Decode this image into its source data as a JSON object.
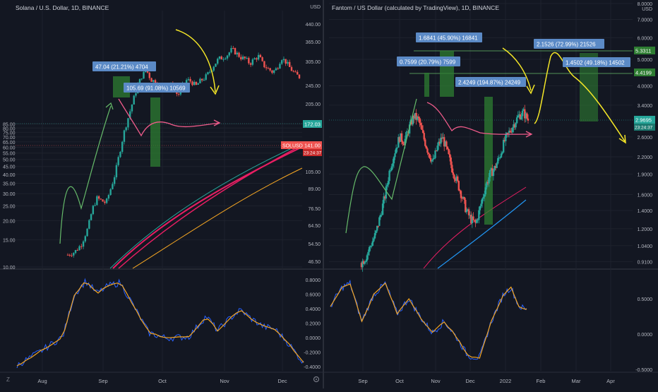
{
  "colors": {
    "background": "#131722",
    "grid": "#1e222d",
    "axis_text": "#b2b5be",
    "up_candle": "#26a69a",
    "down_candle": "#ef5350",
    "highlight_box": "#2e7d32",
    "label_box": "#5b8ac6",
    "annotation_yellow": "#f5e727",
    "annotation_green": "#66bb6a",
    "annotation_pink": "#ef5b8a",
    "ema_red": "#e91e63",
    "ema_orange": "#f5a623",
    "ema_teal": "#26a69a",
    "ema_blue": "#2196f3",
    "oscillator_blue": "#2962ff",
    "oscillator_orange": "#f5a623"
  },
  "icons": {
    "timezone_icon": "Z",
    "settings_icon": "gear"
  },
  "chart_data": [
    {
      "type": "candlestick",
      "title": "Solana / U.S. Dollar, 1D, BINANCE",
      "price_scale": "log",
      "y_axis_labels": [
        "85.00",
        "80.00",
        "75.00",
        "70.00",
        "65.00",
        "60.00",
        "55.00",
        "50.00",
        "45.00",
        "40.00",
        "35.00",
        "30.00",
        "25.00",
        "20.00",
        "15.00",
        "10.00"
      ],
      "right_axis_labels": [
        "440.00",
        "365.00",
        "305.00",
        "245.00",
        "205.00",
        "172.00",
        "141.00",
        "105.00",
        "89.00",
        "76.50",
        "64.50",
        "54.50",
        "46.50"
      ],
      "right_axis_unit": "USD",
      "x_tick_labels": [
        "Aug",
        "Sep",
        "Oct",
        "Nov",
        "Dec"
      ],
      "ylim": [
        10,
        440
      ],
      "close_series": [
        [
          0,
          12
        ],
        [
          3,
          12.5
        ],
        [
          6,
          14
        ],
        [
          9,
          18
        ],
        [
          11,
          24
        ],
        [
          13,
          28
        ],
        [
          15,
          27
        ],
        [
          17,
          26
        ],
        [
          19,
          32
        ],
        [
          21,
          40
        ],
        [
          23,
          55
        ],
        [
          25,
          75
        ],
        [
          27,
          95
        ],
        [
          29,
          120
        ],
        [
          31,
          150
        ],
        [
          33,
          175
        ],
        [
          35,
          190
        ],
        [
          37,
          165
        ],
        [
          39,
          160
        ],
        [
          41,
          140
        ],
        [
          43,
          150
        ],
        [
          45,
          155
        ],
        [
          47,
          145
        ],
        [
          49,
          130
        ],
        [
          51,
          150
        ],
        [
          53,
          165
        ],
        [
          55,
          160
        ],
        [
          57,
          150
        ],
        [
          59,
          162
        ],
        [
          61,
          170
        ],
        [
          63,
          185
        ],
        [
          65,
          205
        ],
        [
          67,
          225
        ],
        [
          69,
          230
        ],
        [
          71,
          240
        ],
        [
          73,
          260
        ],
        [
          75,
          245
        ],
        [
          77,
          230
        ],
        [
          79,
          225
        ],
        [
          81,
          210
        ],
        [
          83,
          225
        ],
        [
          85,
          235
        ],
        [
          87,
          205
        ],
        [
          89,
          195
        ],
        [
          91,
          185
        ],
        [
          93,
          195
        ],
        [
          95,
          230
        ],
        [
          97,
          215
        ],
        [
          99,
          195
        ],
        [
          101,
          180
        ],
        [
          103,
          172
        ]
      ],
      "annotations": [
        {
          "label": "47.04 (21.21%) 4704"
        },
        {
          "label": "105.69 (91.08%) 10569"
        }
      ],
      "price_tags": [
        {
          "label": "172.03",
          "value": 172.03
        },
        {
          "label": "SOLUSD",
          "value": 141.0
        },
        {
          "label": "141.00",
          "value": 141.0
        },
        {
          "label": "23:24:37",
          "value": 141.0
        }
      ],
      "oscillator_axis_labels": [
        "0.8000",
        "0.6000",
        "0.4000",
        "0.2000",
        "0.0000",
        "-0.2000",
        "-0.4000"
      ],
      "oscillator_range": [
        -0.4,
        0.9
      ]
    },
    {
      "type": "candlestick",
      "title": "Fantom / US Dollar (calculated by TradingView), 1D, BINANCE",
      "price_scale": "log",
      "y_axis_labels": [
        "8.0000",
        "7.0000",
        "6.0000",
        "5.0000",
        "4.0000",
        "3.4000",
        "2.6000",
        "2.2000",
        "1.9000",
        "1.6000",
        "1.4000",
        "1.2000",
        "1.0400",
        "0.9100"
      ],
      "y_axis_unit": "USD",
      "x_tick_labels": [
        "Sep",
        "Oct",
        "Nov",
        "Dec",
        "2022",
        "Feb",
        "Mar",
        "Apr"
      ],
      "ylim": [
        0.88,
        8.0
      ],
      "close_series": [
        [
          0,
          0.9
        ],
        [
          3,
          0.95
        ],
        [
          6,
          1.05
        ],
        [
          9,
          1.15
        ],
        [
          12,
          1.35
        ],
        [
          15,
          1.6
        ],
        [
          18,
          2.0
        ],
        [
          21,
          2.3
        ],
        [
          24,
          2.6
        ],
        [
          27,
          2.5
        ],
        [
          30,
          2.8
        ],
        [
          33,
          3.1
        ],
        [
          36,
          3.0
        ],
        [
          39,
          2.6
        ],
        [
          42,
          2.3
        ],
        [
          45,
          2.1
        ],
        [
          48,
          2.4
        ],
        [
          51,
          2.6
        ],
        [
          54,
          2.3
        ],
        [
          57,
          2.0
        ],
        [
          60,
          1.8
        ],
        [
          63,
          1.6
        ],
        [
          66,
          1.4
        ],
        [
          69,
          1.3
        ],
        [
          72,
          1.25
        ],
        [
          75,
          1.45
        ],
        [
          78,
          1.7
        ],
        [
          81,
          1.9
        ],
        [
          84,
          2.0
        ],
        [
          87,
          2.2
        ],
        [
          90,
          2.5
        ],
        [
          93,
          2.7
        ],
        [
          96,
          2.9
        ],
        [
          99,
          3.1
        ],
        [
          102,
          3.2
        ],
        [
          105,
          3.0
        ]
      ],
      "annotations": [
        {
          "label": "1.6841 (45.90%) 16841"
        },
        {
          "label": "0.7599 (20.79%) 7599"
        },
        {
          "label": "2.4249 (194.87%) 24249"
        },
        {
          "label": "2.1526 (72.99%) 21526"
        },
        {
          "label": "1.4502 (49.18%) 14502"
        }
      ],
      "price_tags": [
        {
          "label": "5.3311",
          "value": 5.3311
        },
        {
          "label": "4.4199",
          "value": 4.4199
        },
        {
          "label": "2.9695",
          "value": 2.9695
        },
        {
          "label": "23:24:37",
          "value": 2.9695
        }
      ],
      "oscillator_axis_labels": [
        "0.5000",
        "0.0000",
        "-0.5000"
      ],
      "oscillator_range": [
        -0.55,
        0.75
      ]
    }
  ]
}
